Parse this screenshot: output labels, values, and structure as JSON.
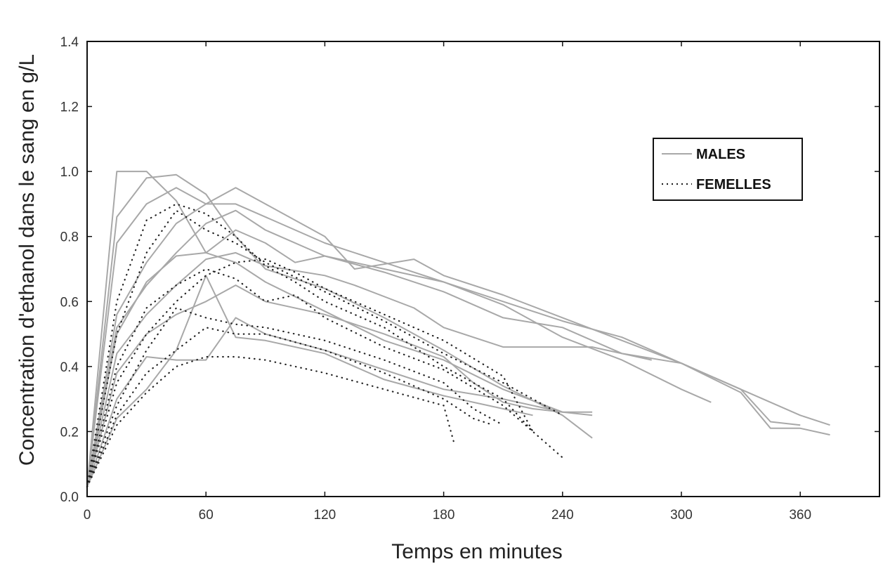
{
  "chart_data": {
    "type": "line",
    "xlabel": "Temps en minutes",
    "ylabel": "Concentration d'ethanol dans le sang en g/L",
    "xlim": [
      0,
      400
    ],
    "ylim": [
      0,
      1.4
    ],
    "xticks": [
      0,
      60,
      120,
      180,
      240,
      300,
      360
    ],
    "yticks": [
      "0.0",
      "0.2",
      "0.4",
      "0.6",
      "0.8",
      "1.0",
      "1.2",
      "1.4"
    ],
    "grid": false,
    "legend_position": "top-right",
    "legend": [
      {
        "label": "MALES",
        "style": "solid"
      },
      {
        "label": "FEMELLES",
        "style": "dotted"
      }
    ],
    "colors": {
      "males": "#a8a8a8",
      "femelles": "#222222",
      "frame": "#111111"
    },
    "males": [
      [
        [
          0,
          0.03
        ],
        [
          15,
          1.0
        ],
        [
          30,
          1.0
        ],
        [
          45,
          0.91
        ],
        [
          60,
          0.75
        ],
        [
          75,
          0.72
        ],
        [
          90,
          0.66
        ],
        [
          120,
          0.57
        ],
        [
          150,
          0.48
        ],
        [
          180,
          0.42
        ],
        [
          210,
          0.33
        ],
        [
          240,
          0.26
        ],
        [
          255,
          0.25
        ]
      ],
      [
        [
          0,
          0.03
        ],
        [
          15,
          0.86
        ],
        [
          30,
          0.98
        ],
        [
          45,
          0.99
        ],
        [
          60,
          0.93
        ],
        [
          75,
          0.8
        ],
        [
          90,
          0.7
        ],
        [
          120,
          0.64
        ],
        [
          150,
          0.55
        ],
        [
          180,
          0.45
        ],
        [
          210,
          0.34
        ],
        [
          240,
          0.25
        ],
        [
          255,
          0.18
        ]
      ],
      [
        [
          0,
          0.03
        ],
        [
          15,
          0.78
        ],
        [
          30,
          0.9
        ],
        [
          45,
          0.95
        ],
        [
          60,
          0.9
        ],
        [
          75,
          0.9
        ],
        [
          90,
          0.86
        ],
        [
          120,
          0.78
        ],
        [
          150,
          0.72
        ],
        [
          180,
          0.66
        ],
        [
          210,
          0.59
        ],
        [
          240,
          0.49
        ],
        [
          270,
          0.42
        ],
        [
          300,
          0.33
        ],
        [
          315,
          0.29
        ]
      ],
      [
        [
          0,
          0.03
        ],
        [
          15,
          0.56
        ],
        [
          30,
          0.72
        ],
        [
          45,
          0.84
        ],
        [
          60,
          0.9
        ],
        [
          75,
          0.95
        ],
        [
          90,
          0.9
        ],
        [
          120,
          0.8
        ],
        [
          135,
          0.7
        ],
        [
          165,
          0.73
        ],
        [
          180,
          0.68
        ],
        [
          210,
          0.62
        ],
        [
          240,
          0.55
        ],
        [
          270,
          0.48
        ],
        [
          300,
          0.41
        ],
        [
          330,
          0.33
        ],
        [
          345,
          0.23
        ],
        [
          360,
          0.22
        ]
      ],
      [
        [
          0,
          0.03
        ],
        [
          15,
          0.52
        ],
        [
          30,
          0.65
        ],
        [
          45,
          0.75
        ],
        [
          60,
          0.84
        ],
        [
          75,
          0.88
        ],
        [
          90,
          0.82
        ],
        [
          120,
          0.74
        ],
        [
          150,
          0.7
        ],
        [
          180,
          0.66
        ],
        [
          210,
          0.6
        ],
        [
          240,
          0.54
        ],
        [
          270,
          0.49
        ],
        [
          300,
          0.41
        ],
        [
          330,
          0.33
        ],
        [
          360,
          0.25
        ],
        [
          375,
          0.22
        ]
      ],
      [
        [
          0,
          0.03
        ],
        [
          15,
          0.5
        ],
        [
          30,
          0.66
        ],
        [
          45,
          0.74
        ],
        [
          60,
          0.75
        ],
        [
          75,
          0.82
        ],
        [
          90,
          0.78
        ],
        [
          105,
          0.72
        ],
        [
          120,
          0.74
        ],
        [
          150,
          0.69
        ],
        [
          180,
          0.63
        ],
        [
          210,
          0.55
        ],
        [
          240,
          0.52
        ],
        [
          270,
          0.44
        ],
        [
          300,
          0.41
        ],
        [
          330,
          0.32
        ],
        [
          345,
          0.21
        ],
        [
          360,
          0.21
        ],
        [
          375,
          0.19
        ]
      ],
      [
        [
          0,
          0.03
        ],
        [
          15,
          0.44
        ],
        [
          30,
          0.56
        ],
        [
          45,
          0.65
        ],
        [
          60,
          0.73
        ],
        [
          75,
          0.75
        ],
        [
          90,
          0.71
        ],
        [
          120,
          0.68
        ],
        [
          135,
          0.65
        ],
        [
          165,
          0.58
        ],
        [
          180,
          0.52
        ],
        [
          210,
          0.46
        ],
        [
          225,
          0.46
        ],
        [
          255,
          0.46
        ],
        [
          285,
          0.42
        ]
      ],
      [
        [
          0,
          0.03
        ],
        [
          15,
          0.38
        ],
        [
          30,
          0.5
        ],
        [
          45,
          0.56
        ],
        [
          60,
          0.6
        ],
        [
          75,
          0.65
        ],
        [
          90,
          0.6
        ],
        [
          120,
          0.56
        ],
        [
          150,
          0.5
        ],
        [
          180,
          0.43
        ],
        [
          195,
          0.35
        ],
        [
          210,
          0.29
        ],
        [
          225,
          0.27
        ],
        [
          240,
          0.26
        ],
        [
          255,
          0.26
        ]
      ],
      [
        [
          0,
          0.03
        ],
        [
          15,
          0.3
        ],
        [
          30,
          0.43
        ],
        [
          45,
          0.42
        ],
        [
          60,
          0.42
        ],
        [
          75,
          0.55
        ],
        [
          90,
          0.5
        ],
        [
          120,
          0.45
        ],
        [
          150,
          0.39
        ],
        [
          180,
          0.33
        ],
        [
          210,
          0.3
        ],
        [
          240,
          0.26
        ]
      ],
      [
        [
          0,
          0.03
        ],
        [
          15,
          0.24
        ],
        [
          30,
          0.33
        ],
        [
          45,
          0.45
        ],
        [
          60,
          0.68
        ],
        [
          75,
          0.49
        ],
        [
          90,
          0.48
        ],
        [
          120,
          0.44
        ],
        [
          150,
          0.36
        ],
        [
          180,
          0.31
        ],
        [
          210,
          0.27
        ],
        [
          225,
          0.25
        ]
      ]
    ],
    "femelles": [
      [
        [
          0,
          0.03
        ],
        [
          15,
          0.6
        ],
        [
          30,
          0.85
        ],
        [
          45,
          0.9
        ],
        [
          60,
          0.87
        ],
        [
          75,
          0.8
        ],
        [
          90,
          0.71
        ],
        [
          105,
          0.66
        ],
        [
          120,
          0.6
        ],
        [
          150,
          0.52
        ],
        [
          180,
          0.4
        ],
        [
          210,
          0.3
        ],
        [
          225,
          0.2
        ]
      ],
      [
        [
          0,
          0.03
        ],
        [
          15,
          0.5
        ],
        [
          30,
          0.75
        ],
        [
          45,
          0.88
        ],
        [
          60,
          0.82
        ],
        [
          75,
          0.78
        ],
        [
          90,
          0.72
        ],
        [
          120,
          0.63
        ],
        [
          150,
          0.54
        ],
        [
          180,
          0.44
        ],
        [
          210,
          0.35
        ],
        [
          240,
          0.25
        ]
      ],
      [
        [
          0,
          0.03
        ],
        [
          15,
          0.4
        ],
        [
          30,
          0.58
        ],
        [
          45,
          0.65
        ],
        [
          60,
          0.7
        ],
        [
          75,
          0.67
        ],
        [
          90,
          0.6
        ],
        [
          105,
          0.62
        ],
        [
          120,
          0.55
        ],
        [
          150,
          0.46
        ],
        [
          180,
          0.39
        ],
        [
          210,
          0.28
        ],
        [
          240,
          0.12
        ]
      ],
      [
        [
          0,
          0.03
        ],
        [
          15,
          0.35
        ],
        [
          30,
          0.5
        ],
        [
          45,
          0.6
        ],
        [
          60,
          0.68
        ],
        [
          75,
          0.72
        ],
        [
          90,
          0.73
        ],
        [
          105,
          0.69
        ],
        [
          120,
          0.64
        ],
        [
          150,
          0.56
        ],
        [
          180,
          0.48
        ],
        [
          210,
          0.37
        ],
        [
          225,
          0.2
        ]
      ],
      [
        [
          0,
          0.03
        ],
        [
          15,
          0.28
        ],
        [
          30,
          0.45
        ],
        [
          45,
          0.58
        ],
        [
          60,
          0.55
        ],
        [
          75,
          0.53
        ],
        [
          90,
          0.52
        ],
        [
          120,
          0.48
        ],
        [
          150,
          0.42
        ],
        [
          180,
          0.35
        ],
        [
          195,
          0.27
        ],
        [
          210,
          0.22
        ]
      ],
      [
        [
          0,
          0.03
        ],
        [
          15,
          0.25
        ],
        [
          30,
          0.38
        ],
        [
          45,
          0.45
        ],
        [
          60,
          0.52
        ],
        [
          75,
          0.5
        ],
        [
          90,
          0.5
        ],
        [
          120,
          0.45
        ],
        [
          150,
          0.38
        ],
        [
          180,
          0.3
        ],
        [
          195,
          0.24
        ],
        [
          205,
          0.22
        ]
      ],
      [
        [
          0,
          0.03
        ],
        [
          15,
          0.22
        ],
        [
          30,
          0.32
        ],
        [
          45,
          0.4
        ],
        [
          60,
          0.43
        ],
        [
          75,
          0.43
        ],
        [
          90,
          0.42
        ],
        [
          120,
          0.38
        ],
        [
          150,
          0.33
        ],
        [
          180,
          0.28
        ],
        [
          185,
          0.17
        ]
      ]
    ]
  }
}
